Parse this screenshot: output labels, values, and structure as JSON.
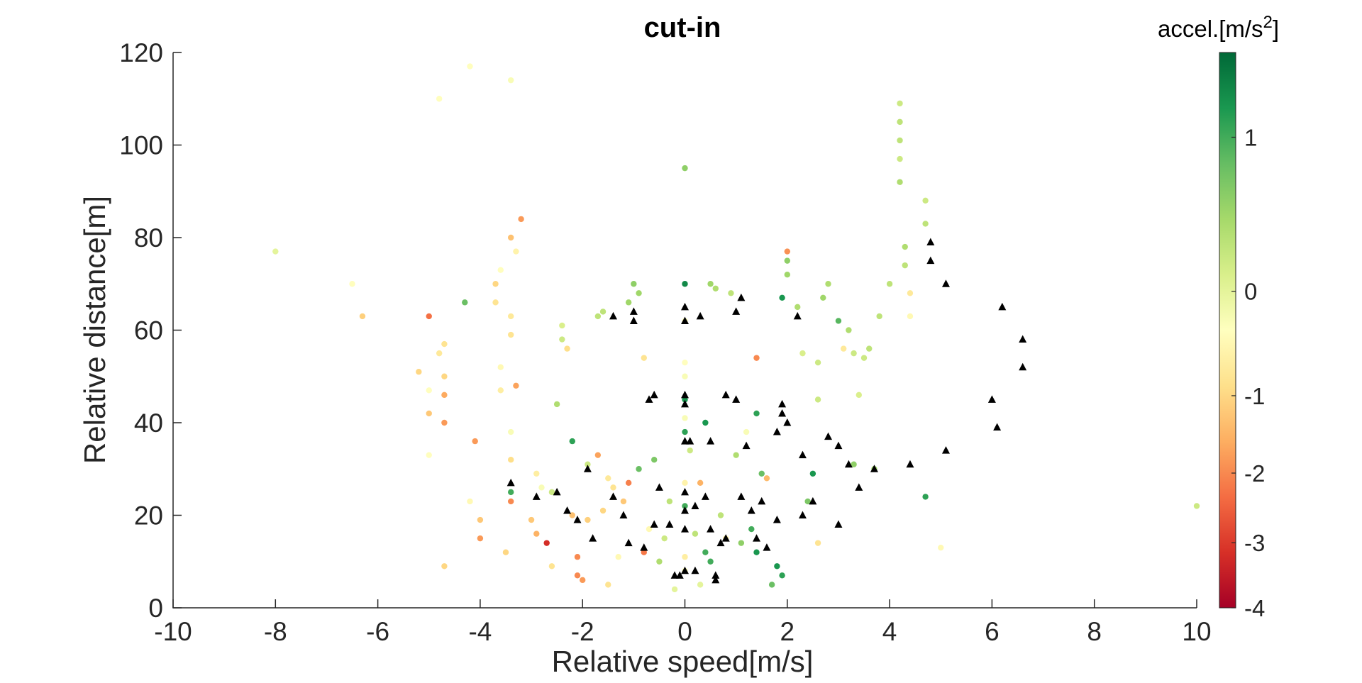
{
  "chart_data": {
    "type": "scatter",
    "title": "cut-in",
    "xlabel": "Relative speed[m/s]",
    "ylabel": "Relative distance[m]",
    "xlim": [
      -10,
      10
    ],
    "ylim": [
      0,
      120
    ],
    "xticks": [
      "-10",
      "-8",
      "-6",
      "-4",
      "-2",
      "0",
      "2",
      "4",
      "6",
      "8",
      "10"
    ],
    "yticks": [
      "0",
      "20",
      "40",
      "60",
      "80",
      "100",
      "120"
    ],
    "grid": false,
    "colorbar": {
      "title_main": "accel.[m/s",
      "title_sup": "2",
      "title_end": "]",
      "range": [
        -4,
        1.55
      ],
      "ticks": [
        {
          "value": 1,
          "label": "1"
        },
        {
          "value": 0,
          "label": "0"
        },
        {
          "value": -1,
          "label": "-1"
        },
        {
          "value": -2,
          "label": "-2"
        },
        {
          "value": -3,
          "label": "-3"
        },
        {
          "value": -4,
          "label": "-4"
        }
      ],
      "colormap": [
        "#a50026",
        "#d73027",
        "#f46d43",
        "#fdae61",
        "#fee08b",
        "#ffffbf",
        "#d9ef8b",
        "#a6d96a",
        "#66bd63",
        "#1a9850",
        "#006837"
      ]
    },
    "series": [
      {
        "marker": "dot",
        "points": [
          [
            -8.0,
            77,
            0.0
          ],
          [
            -6.5,
            70,
            -0.3
          ],
          [
            -6.3,
            63,
            -1.1
          ],
          [
            -5.0,
            63,
            -2.3
          ],
          [
            -5.2,
            51,
            -1.0
          ],
          [
            -5.0,
            47,
            -0.3
          ],
          [
            -5.0,
            42,
            -1.2
          ],
          [
            -4.8,
            55,
            -0.7
          ],
          [
            -4.7,
            57,
            -0.8
          ],
          [
            -4.7,
            50,
            -1.0
          ],
          [
            -4.7,
            46,
            -1.6
          ],
          [
            -4.7,
            40,
            -1.8
          ],
          [
            -5.0,
            33,
            -0.3
          ],
          [
            -4.8,
            110,
            -0.3
          ],
          [
            -4.2,
            117,
            -0.3
          ],
          [
            -3.4,
            114,
            -0.2
          ],
          [
            -4.3,
            66,
            0.8
          ],
          [
            -4.1,
            36,
            -1.8
          ],
          [
            -4.0,
            19,
            -1.2
          ],
          [
            -4.0,
            15,
            -1.8
          ],
          [
            -4.7,
            9,
            -1.0
          ],
          [
            -4.2,
            23,
            -0.4
          ],
          [
            -3.5,
            12,
            -1.0
          ],
          [
            -3.7,
            70,
            -1.0
          ],
          [
            -3.7,
            66,
            -0.8
          ],
          [
            -3.6,
            73,
            -0.3
          ],
          [
            -3.6,
            52,
            -0.4
          ],
          [
            -3.6,
            47,
            -0.6
          ],
          [
            -3.4,
            63,
            -0.7
          ],
          [
            -3.4,
            59,
            -0.8
          ],
          [
            -3.4,
            80,
            -1.3
          ],
          [
            -3.2,
            84,
            -1.8
          ],
          [
            -3.3,
            48,
            -1.7
          ],
          [
            -3.4,
            38,
            -0.2
          ],
          [
            -3.4,
            32,
            -0.9
          ],
          [
            -3.4,
            25,
            1.0
          ],
          [
            -3.4,
            23,
            -2.0
          ],
          [
            -3.3,
            77,
            -0.5
          ],
          [
            -2.7,
            14,
            -3.2
          ],
          [
            -2.6,
            9,
            -0.8
          ],
          [
            -2.9,
            16,
            -1.5
          ],
          [
            -3.0,
            19,
            -1.2
          ],
          [
            -2.9,
            29,
            -0.6
          ],
          [
            -2.8,
            26,
            -0.2
          ],
          [
            -2.6,
            25,
            0.2
          ],
          [
            -2.5,
            44,
            0.4
          ],
          [
            -2.4,
            61,
            0.1
          ],
          [
            -2.4,
            58,
            0.2
          ],
          [
            -2.3,
            56,
            -0.9
          ],
          [
            -2.2,
            36,
            1.1
          ],
          [
            -2.2,
            20,
            -1.3
          ],
          [
            -2.1,
            11,
            -2.0
          ],
          [
            -2.1,
            7,
            -2.0
          ],
          [
            -2.0,
            6,
            -1.8
          ],
          [
            -1.9,
            19,
            -1.1
          ],
          [
            -1.9,
            31,
            0.2
          ],
          [
            -1.7,
            33,
            -1.7
          ],
          [
            -1.7,
            63,
            0.3
          ],
          [
            -1.6,
            64,
            0.3
          ],
          [
            -1.6,
            21,
            -1.0
          ],
          [
            -1.5,
            5,
            -0.8
          ],
          [
            -1.5,
            28,
            -0.7
          ],
          [
            -1.4,
            26,
            -0.8
          ],
          [
            -1.3,
            11,
            -0.4
          ],
          [
            -1.2,
            23,
            -1.2
          ],
          [
            -1.1,
            27,
            -2.1
          ],
          [
            -1.1,
            66,
            0.5
          ],
          [
            -1.0,
            70,
            0.6
          ],
          [
            -0.9,
            68,
            0.5
          ],
          [
            -0.9,
            30,
            0.8
          ],
          [
            -0.8,
            54,
            -0.8
          ],
          [
            -0.8,
            12,
            -2.2
          ],
          [
            -0.7,
            17,
            -0.4
          ],
          [
            -0.6,
            32,
            0.7
          ],
          [
            -0.5,
            10,
            0.4
          ],
          [
            -0.4,
            15,
            0.2
          ],
          [
            -0.3,
            23,
            0.3
          ],
          [
            -0.2,
            4,
            0.0
          ],
          [
            0.0,
            95,
            0.6
          ],
          [
            0.0,
            70,
            1.3
          ],
          [
            0.0,
            62,
            -0.3
          ],
          [
            0.0,
            53,
            -0.3
          ],
          [
            0.0,
            50,
            -0.2
          ],
          [
            0.0,
            45,
            1.2
          ],
          [
            0.0,
            41,
            -0.2
          ],
          [
            0.0,
            38,
            1.1
          ],
          [
            0.0,
            27,
            -0.5
          ],
          [
            0.0,
            22,
            1.0
          ],
          [
            0.0,
            11,
            -0.6
          ],
          [
            0.0,
            8,
            -0.3
          ],
          [
            0.1,
            34,
            0.2
          ],
          [
            0.2,
            16,
            0.3
          ],
          [
            0.3,
            27,
            -1.5
          ],
          [
            0.3,
            5,
            0.0
          ],
          [
            0.4,
            12,
            1.0
          ],
          [
            0.4,
            40,
            1.2
          ],
          [
            0.5,
            10,
            1.0
          ],
          [
            0.5,
            70,
            0.5
          ],
          [
            0.6,
            69,
            0.4
          ],
          [
            0.7,
            20,
            0.3
          ],
          [
            0.8,
            15,
            -0.5
          ],
          [
            0.9,
            68,
            0.3
          ],
          [
            1.0,
            33,
            0.4
          ],
          [
            1.1,
            14,
            0.6
          ],
          [
            1.2,
            38,
            -0.2
          ],
          [
            1.3,
            17,
            1.0
          ],
          [
            1.4,
            54,
            -2.0
          ],
          [
            1.4,
            42,
            1.1
          ],
          [
            1.4,
            12,
            1.2
          ],
          [
            1.5,
            29,
            0.8
          ],
          [
            1.6,
            28,
            -1.4
          ],
          [
            1.7,
            5,
            0.8
          ],
          [
            1.8,
            9,
            1.2
          ],
          [
            1.9,
            7,
            1.1
          ],
          [
            1.9,
            67,
            1.2
          ],
          [
            2.0,
            77,
            -1.9
          ],
          [
            2.0,
            75,
            0.6
          ],
          [
            2.0,
            72,
            0.5
          ],
          [
            2.2,
            65,
            0.4
          ],
          [
            2.3,
            55,
            0.1
          ],
          [
            2.4,
            23,
            0.7
          ],
          [
            2.5,
            29,
            1.2
          ],
          [
            2.6,
            53,
            0.2
          ],
          [
            2.6,
            45,
            0.2
          ],
          [
            2.6,
            14,
            -0.8
          ],
          [
            2.7,
            67,
            0.5
          ],
          [
            2.8,
            70,
            0.4
          ],
          [
            3.0,
            62,
            0.9
          ],
          [
            3.1,
            56,
            -0.7
          ],
          [
            3.2,
            60,
            0.4
          ],
          [
            3.3,
            55,
            0.2
          ],
          [
            3.3,
            31,
            0.6
          ],
          [
            3.4,
            46,
            0.1
          ],
          [
            3.5,
            54,
            0.2
          ],
          [
            3.6,
            56,
            0.3
          ],
          [
            3.7,
            30,
            0.5
          ],
          [
            3.8,
            63,
            0.3
          ],
          [
            4.0,
            70,
            0.3
          ],
          [
            4.2,
            109,
            0.2
          ],
          [
            4.2,
            105,
            0.3
          ],
          [
            4.2,
            101,
            0.3
          ],
          [
            4.2,
            97,
            0.2
          ],
          [
            4.2,
            92,
            0.4
          ],
          [
            4.3,
            78,
            0.4
          ],
          [
            4.3,
            74,
            0.3
          ],
          [
            4.4,
            68,
            -0.7
          ],
          [
            4.4,
            63,
            -0.4
          ],
          [
            4.7,
            88,
            0.2
          ],
          [
            4.7,
            83,
            0.3
          ],
          [
            4.7,
            24,
            1.1
          ],
          [
            5.0,
            13,
            -0.4
          ],
          [
            10.0,
            22,
            0.2
          ]
        ]
      },
      {
        "marker": "triangle",
        "color": "#000000",
        "points": [
          [
            -3.4,
            27
          ],
          [
            -2.9,
            24
          ],
          [
            -2.5,
            25
          ],
          [
            -2.3,
            21
          ],
          [
            -2.1,
            19
          ],
          [
            -1.9,
            30
          ],
          [
            -1.8,
            15
          ],
          [
            -1.4,
            63
          ],
          [
            -1.0,
            64
          ],
          [
            -1.0,
            62
          ],
          [
            -1.4,
            24
          ],
          [
            -1.2,
            20
          ],
          [
            -1.1,
            14
          ],
          [
            -0.8,
            13
          ],
          [
            -0.7,
            45
          ],
          [
            -0.6,
            46
          ],
          [
            -0.6,
            18
          ],
          [
            -0.5,
            26
          ],
          [
            -0.3,
            18
          ],
          [
            -0.2,
            7
          ],
          [
            -0.1,
            7
          ],
          [
            0.0,
            65
          ],
          [
            0.0,
            62
          ],
          [
            0.0,
            46
          ],
          [
            0.0,
            44
          ],
          [
            0.0,
            36
          ],
          [
            0.0,
            25
          ],
          [
            0.0,
            21
          ],
          [
            0.0,
            17
          ],
          [
            0.0,
            8
          ],
          [
            0.1,
            36
          ],
          [
            0.2,
            22
          ],
          [
            0.2,
            8
          ],
          [
            0.3,
            63
          ],
          [
            0.4,
            24
          ],
          [
            0.5,
            36
          ],
          [
            0.5,
            17
          ],
          [
            0.6,
            6
          ],
          [
            0.6,
            7
          ],
          [
            0.7,
            14
          ],
          [
            0.8,
            46
          ],
          [
            0.8,
            15
          ],
          [
            1.0,
            45
          ],
          [
            1.0,
            64
          ],
          [
            1.1,
            67
          ],
          [
            1.1,
            24
          ],
          [
            1.2,
            35
          ],
          [
            1.3,
            21
          ],
          [
            1.4,
            15
          ],
          [
            1.5,
            23
          ],
          [
            1.6,
            13
          ],
          [
            1.8,
            38
          ],
          [
            1.8,
            19
          ],
          [
            1.9,
            44
          ],
          [
            1.9,
            42
          ],
          [
            2.0,
            40
          ],
          [
            2.2,
            63
          ],
          [
            2.3,
            33
          ],
          [
            2.5,
            23
          ],
          [
            2.3,
            20
          ],
          [
            2.8,
            37
          ],
          [
            3.0,
            35
          ],
          [
            3.2,
            31
          ],
          [
            3.0,
            18
          ],
          [
            3.4,
            26
          ],
          [
            3.7,
            30
          ],
          [
            4.4,
            31
          ],
          [
            4.8,
            79
          ],
          [
            4.8,
            75
          ],
          [
            5.1,
            70
          ],
          [
            5.1,
            34
          ],
          [
            6.0,
            45
          ],
          [
            6.1,
            39
          ],
          [
            6.2,
            65
          ],
          [
            6.6,
            58
          ],
          [
            6.6,
            52
          ]
        ]
      }
    ]
  }
}
